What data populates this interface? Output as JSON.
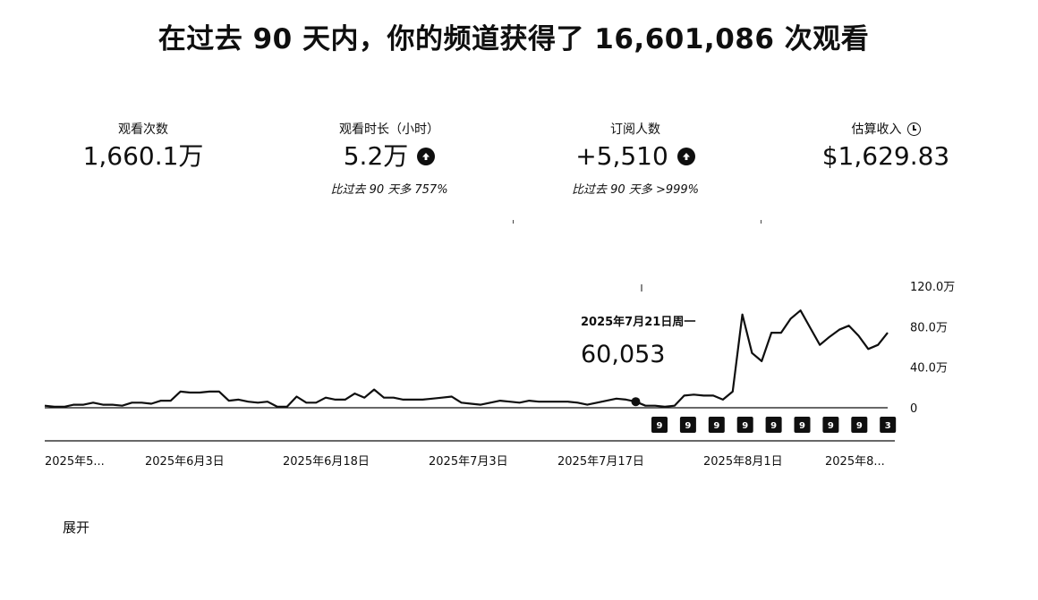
{
  "headline": "在过去 90 天内，你的频道获得了 16,601,086 次观看",
  "metrics": [
    {
      "label": "观看次数",
      "value": "1,660.1万",
      "comparison": "",
      "trend_icon": ""
    },
    {
      "label": "观看时长（小时）",
      "value": "5.2万",
      "comparison": "比过去 90 天多 757%",
      "trend_icon": "arrow-up-icon"
    },
    {
      "label": "订阅人数",
      "value": "+5,510",
      "comparison": "比过去 90 天多 >999%",
      "trend_icon": "arrow-up-icon"
    },
    {
      "label": "估算收入",
      "value": "$1,629.83",
      "comparison": "",
      "trend_icon": "clock-icon"
    }
  ],
  "tooltip": {
    "date": "2025年7月21日周一",
    "value": "60,053"
  },
  "video_markers": [
    "9",
    "9",
    "9",
    "9",
    "9",
    "9",
    "9",
    "9",
    "3"
  ],
  "expand_label": "展开",
  "chart_data": {
    "type": "line",
    "x_ticks": [
      "2025年5...",
      "2025年6月3日",
      "2025年6月18日",
      "2025年7月3日",
      "2025年7月17日",
      "2025年8月1日",
      "2025年8..."
    ],
    "y_ticks": [
      "120.0万",
      "80.0万",
      "40.0万",
      "0"
    ],
    "ylim": [
      0,
      1200000
    ],
    "series": [
      {
        "values": [
          20000,
          10000,
          10000,
          30000,
          30000,
          50000,
          30000,
          30000,
          20000,
          50000,
          50000,
          40000,
          70000,
          70000,
          160000,
          150000,
          150000,
          160000,
          160000,
          70000,
          80000,
          60000,
          50000,
          60000,
          10000,
          10000,
          110000,
          50000,
          50000,
          100000,
          80000,
          80000,
          140000,
          100000,
          180000,
          100000,
          100000,
          80000,
          80000,
          80000,
          90000,
          100000,
          110000,
          50000,
          40000,
          30000,
          50000,
          70000,
          60000,
          50000,
          70000,
          60000,
          60000,
          60000,
          60000,
          50000,
          30000,
          50000,
          70000,
          90000,
          80000,
          60053,
          20000,
          20000,
          10000,
          20000,
          120000,
          130000,
          120000,
          120000,
          80000,
          160000,
          920000,
          540000,
          460000,
          740000,
          740000,
          880000,
          960000,
          790000,
          620000,
          700000,
          770000,
          810000,
          710000,
          580000,
          620000,
          740000
        ]
      }
    ],
    "highlight_index": 61
  }
}
